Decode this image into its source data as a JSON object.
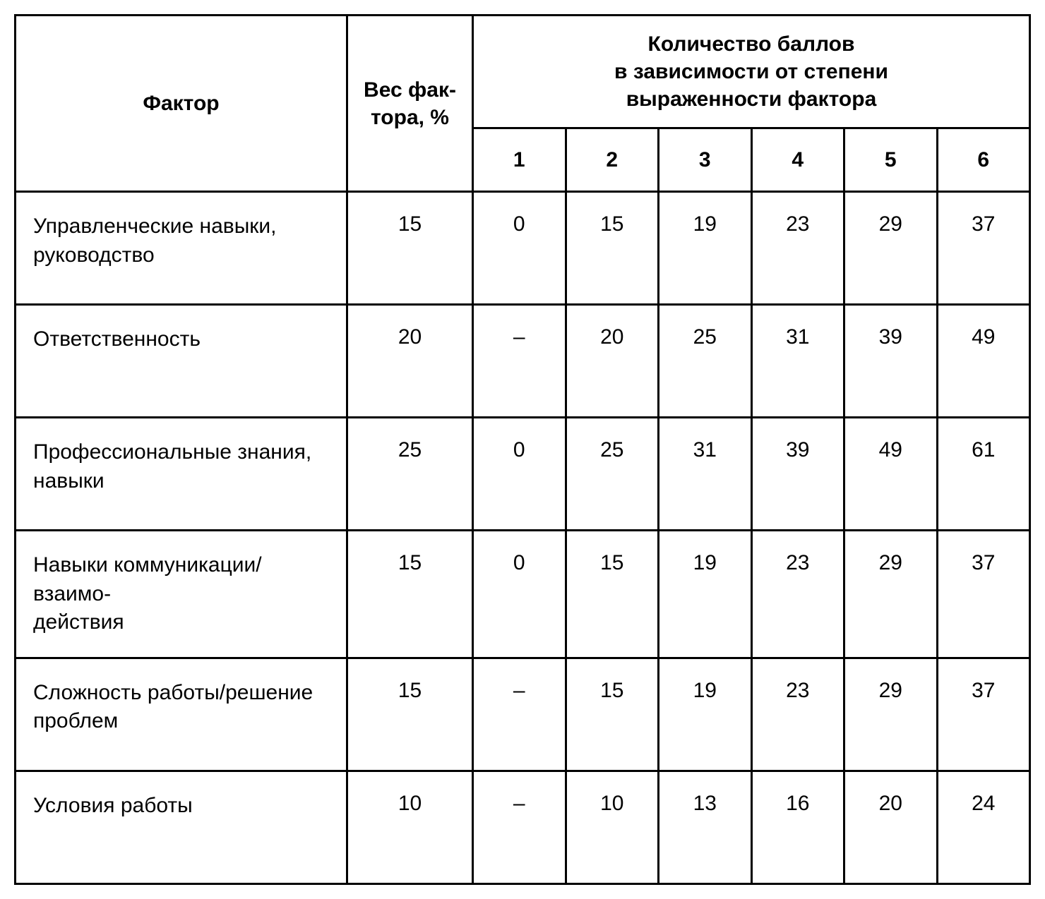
{
  "table": {
    "type": "table",
    "background_color": "#ffffff",
    "border_color": "#000000",
    "border_width": 3,
    "text_color": "#000000",
    "font_family": "Arial",
    "header_fontsize": 30,
    "body_fontsize": 30,
    "header_fontweight": "bold",
    "body_fontweight": "normal",
    "columns": {
      "factor_label": "Фактор",
      "weight_label": "Вес фак-\nтора, %",
      "points_group_label": "Количество баллов\nв зависимости от степени\nвыраженности фактора",
      "point_levels": [
        "1",
        "2",
        "3",
        "4",
        "5",
        "6"
      ]
    },
    "column_widths": {
      "factor": 470,
      "weight": 178,
      "point": 132
    },
    "rows": [
      {
        "factor": "Управленческие навыки, руководство",
        "weight": "15",
        "points": [
          "0",
          "15",
          "19",
          "23",
          "29",
          "37"
        ]
      },
      {
        "factor": "Ответственность",
        "weight": "20",
        "points": [
          "–",
          "20",
          "25",
          "31",
          "39",
          "49"
        ]
      },
      {
        "factor": "Профессиональные знания, навыки",
        "weight": "25",
        "points": [
          "0",
          "25",
          "31",
          "39",
          "49",
          "61"
        ]
      },
      {
        "factor": "Навыки коммуникации/взаимо-\nдействия",
        "weight": "15",
        "points": [
          "0",
          "15",
          "19",
          "23",
          "29",
          "37"
        ]
      },
      {
        "factor": "Сложность работы/решение проблем",
        "weight": "15",
        "points": [
          "–",
          "15",
          "19",
          "23",
          "29",
          "37"
        ]
      },
      {
        "factor": "Условия работы",
        "weight": "10",
        "points": [
          "–",
          "10",
          "13",
          "16",
          "20",
          "24"
        ]
      }
    ]
  }
}
